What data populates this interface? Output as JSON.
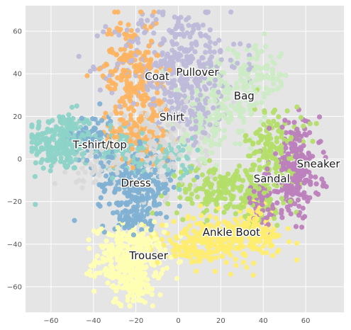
{
  "chart_data": {
    "type": "scatter",
    "title": "",
    "xlabel": "",
    "ylabel": "",
    "xlim": [
      -72,
      78
    ],
    "ylim": [
      -72,
      72
    ],
    "x_ticks": [
      -60,
      -40,
      -20,
      0,
      20,
      40,
      60
    ],
    "y_ticks": [
      -60,
      -40,
      -20,
      0,
      20,
      40,
      60
    ],
    "x_tick_labels": [
      "−60",
      "−40",
      "−20",
      "0",
      "20",
      "40",
      "60"
    ],
    "y_tick_labels": [
      "−60",
      "−40",
      "−20",
      "0",
      "20",
      "40",
      "60"
    ],
    "grid": true,
    "background_color": "#e5e5e5",
    "grid_color": "#ffffff",
    "series": [
      {
        "name": "T-shirt/top",
        "color": "#8dd3c7",
        "label_at": [
          -37,
          5
        ],
        "clusters": [
          {
            "cx": -55,
            "cy": 8,
            "sx": 8,
            "sy": 7,
            "n": 240
          },
          {
            "cx": -25,
            "cy": 5,
            "sx": 8,
            "sy": 6,
            "n": 90
          },
          {
            "cx": -5,
            "cy": 0,
            "sx": 6,
            "sy": 5,
            "n": 60
          }
        ]
      },
      {
        "name": "Trouser",
        "color": "#ffffb3",
        "label_at": [
          -14,
          -47
        ],
        "clusters": [
          {
            "cx": -23,
            "cy": -47,
            "sx": 8,
            "sy": 8,
            "n": 330
          },
          {
            "cx": -20,
            "cy": -60,
            "sx": 4,
            "sy": 4,
            "n": 60
          }
        ]
      },
      {
        "name": "Pullover",
        "color": "#bebada",
        "label_at": [
          9,
          39
        ],
        "clusters": [
          {
            "cx": 0,
            "cy": 45,
            "sx": 15,
            "sy": 13,
            "n": 330
          },
          {
            "cx": 5,
            "cy": 25,
            "sx": 8,
            "sy": 8,
            "n": 90
          }
        ]
      },
      {
        "name": "Dress",
        "color": "#80b1d3",
        "label_at": [
          -20,
          -13
        ],
        "clusters": [
          {
            "cx": -20,
            "cy": -12,
            "sx": 9,
            "sy": 8,
            "n": 230
          },
          {
            "cx": -40,
            "cy": 10,
            "sx": 5,
            "sy": 6,
            "n": 70
          },
          {
            "cx": -20,
            "cy": -27,
            "sx": 5,
            "sy": 4,
            "n": 60
          }
        ]
      },
      {
        "name": "Coat",
        "color": "#fdb462",
        "label_at": [
          -10,
          37
        ],
        "clusters": [
          {
            "cx": -22,
            "cy": 42,
            "sx": 7,
            "sy": 12,
            "n": 190
          },
          {
            "cx": -15,
            "cy": 15,
            "sx": 6,
            "sy": 10,
            "n": 110
          },
          {
            "cx": -25,
            "cy": 10,
            "sx": 5,
            "sy": 5,
            "n": 40
          }
        ]
      },
      {
        "name": "Sandal",
        "color": "#b3de69",
        "label_at": [
          44,
          -11
        ],
        "clusters": [
          {
            "cx": 45,
            "cy": 5,
            "sx": 7,
            "sy": 10,
            "n": 150
          },
          {
            "cx": 20,
            "cy": -15,
            "sx": 12,
            "sy": 6,
            "n": 170
          },
          {
            "cx": 40,
            "cy": -20,
            "sx": 6,
            "sy": 6,
            "n": 50
          }
        ]
      },
      {
        "name": "Shirt",
        "color": "#d9d9d9",
        "label_at": [
          -3,
          18
        ],
        "clusters": [
          {
            "cx": -10,
            "cy": 5,
            "sx": 10,
            "sy": 10,
            "n": 180
          },
          {
            "cx": -40,
            "cy": -3,
            "sx": 6,
            "sy": 5,
            "n": 60
          }
        ]
      },
      {
        "name": "Sneaker",
        "color": "#bc80bd",
        "label_at": [
          66,
          -4
        ],
        "clusters": [
          {
            "cx": 55,
            "cy": -5,
            "sx": 6,
            "sy": 11,
            "n": 240
          },
          {
            "cx": 40,
            "cy": -20,
            "sx": 4,
            "sy": 5,
            "n": 60
          }
        ]
      },
      {
        "name": "Bag",
        "color": "#ccebc5",
        "label_at": [
          31,
          28
        ],
        "clusters": [
          {
            "cx": 20,
            "cy": 25,
            "sx": 9,
            "sy": 10,
            "n": 150
          },
          {
            "cx": 38,
            "cy": 38,
            "sx": 7,
            "sy": 7,
            "n": 90
          },
          {
            "cx": 12,
            "cy": 10,
            "sx": 6,
            "sy": 6,
            "n": 50
          }
        ]
      },
      {
        "name": "Ankle Boot",
        "color": "#ffed6f",
        "label_at": [
          25,
          -36
        ],
        "clusters": [
          {
            "cx": 22,
            "cy": -37,
            "sx": 13,
            "sy": 5,
            "n": 290
          },
          {
            "cx": 35,
            "cy": -30,
            "sx": 6,
            "sy": 5,
            "n": 60
          },
          {
            "cx": 5,
            "cy": -43,
            "sx": 5,
            "sy": 3,
            "n": 50
          }
        ]
      }
    ]
  }
}
